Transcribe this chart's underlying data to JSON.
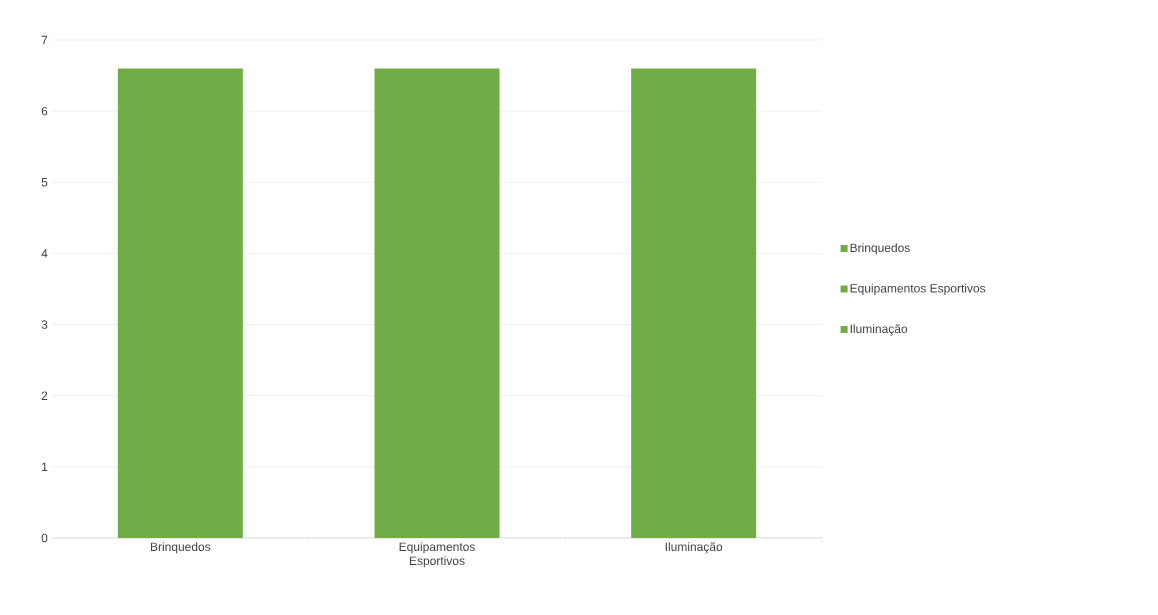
{
  "chart_data": {
    "type": "bar",
    "categories": [
      "Brinquedos",
      "Equipamentos Esportivos",
      "Iluminação"
    ],
    "series": [
      {
        "name": "Brinquedos",
        "color": "#70ad47",
        "values": [
          6.6,
          null,
          null
        ]
      },
      {
        "name": "Equipamentos Esportivos",
        "color": "#70ad47",
        "values": [
          null,
          6.6,
          null
        ]
      },
      {
        "name": "Iluminação",
        "color": "#70ad47",
        "values": [
          null,
          null,
          6.6
        ]
      }
    ],
    "ylim": [
      0,
      7
    ],
    "yticks": [
      0,
      1,
      2,
      3,
      4,
      5,
      6,
      7
    ],
    "grid": "y",
    "legend": "right"
  }
}
